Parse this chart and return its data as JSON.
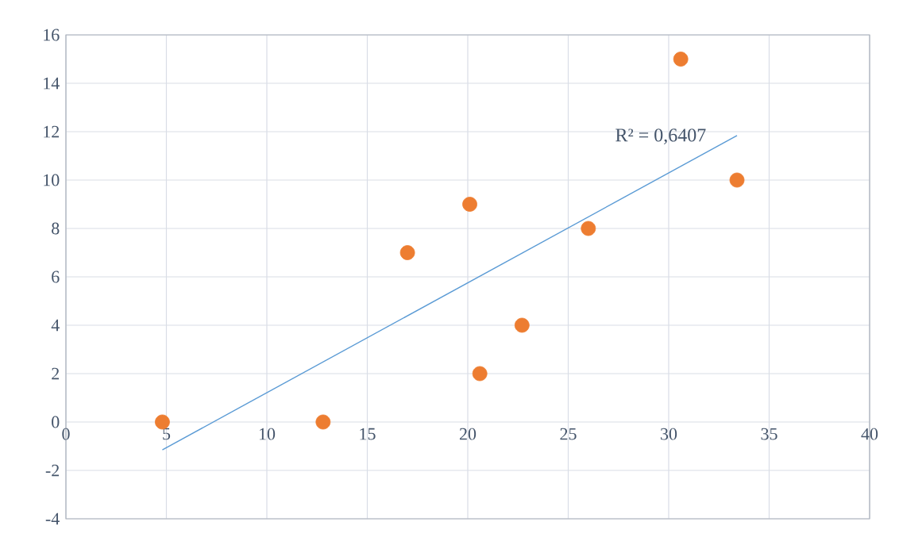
{
  "chart_data": {
    "type": "scatter",
    "series": [
      {
        "color": "#ed7d31",
        "marker": "circle",
        "x": [
          4.8,
          12.8,
          17.0,
          20.1,
          20.6,
          22.7,
          26.0,
          30.6,
          33.4
        ],
        "values": [
          0,
          0,
          7,
          9,
          2,
          4,
          8,
          15,
          10
        ]
      },
      {
        "type": "line",
        "color": "#5b9bd5",
        "marker": "none",
        "line_style": "solid",
        "x": [
          4.8,
          33.4
        ],
        "values": [
          -1.15,
          11.84
        ]
      }
    ],
    "annotations": [
      "R² = 0,6407"
    ],
    "xlim": [
      0,
      40
    ],
    "ylim": [
      -4,
      16
    ],
    "xticks": [
      0,
      5,
      10,
      15,
      20,
      25,
      30,
      35,
      40
    ],
    "yticks": [
      -4,
      -2,
      0,
      2,
      4,
      6,
      8,
      10,
      12,
      14,
      16
    ],
    "grid": true
  }
}
